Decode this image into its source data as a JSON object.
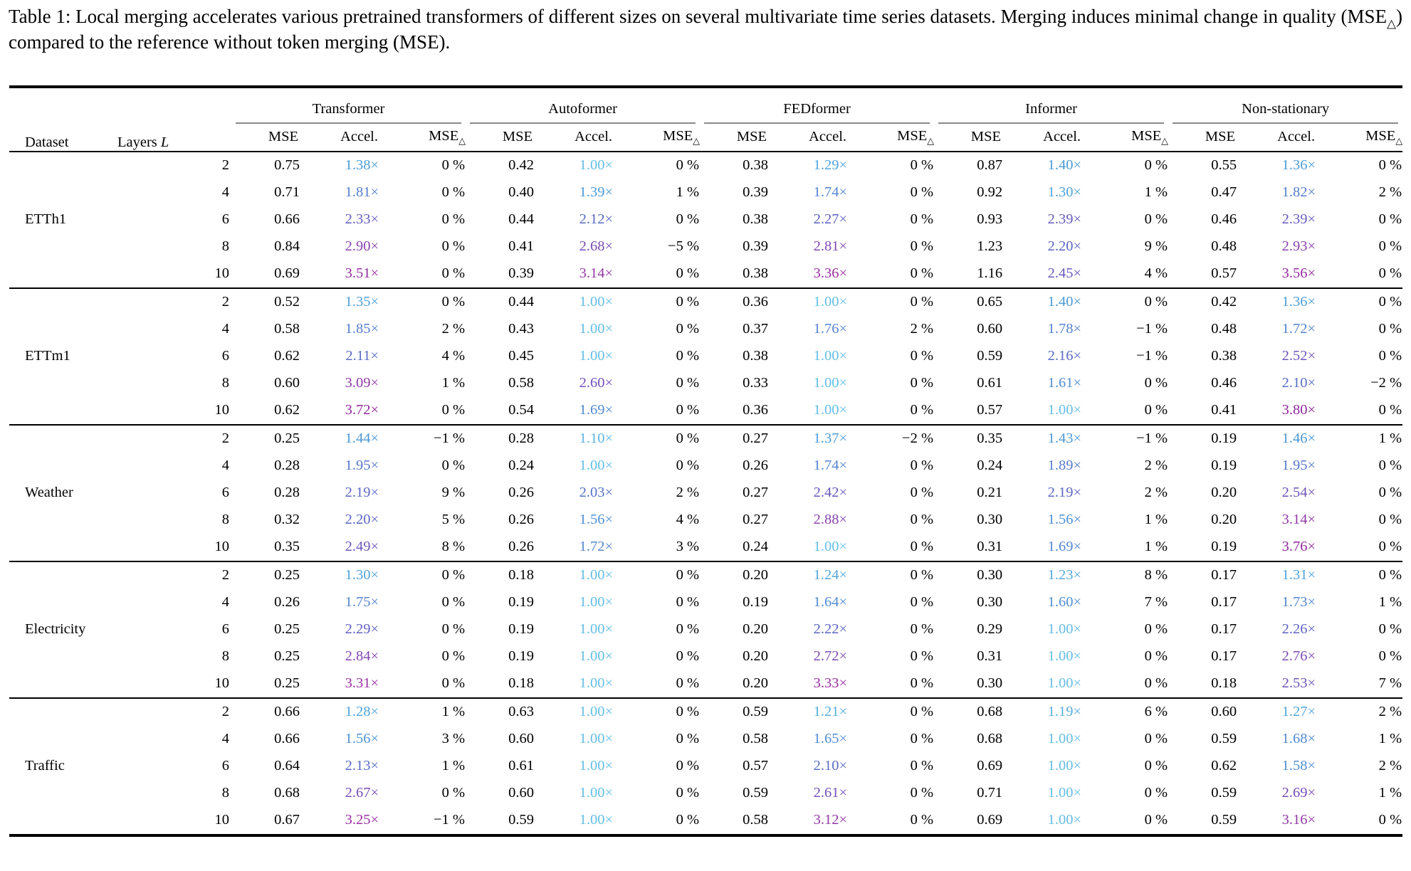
{
  "page": {
    "background": "#ffffff",
    "text_color": "#000000"
  },
  "caption": {
    "part1": "Table 1: Local merging accelerates various pretrained transformers of different sizes on several multivariate time series datasets. Merging induces minimal change in quality (MSE",
    "subscript": "△",
    "part2": ") compared to the reference without token merging (MSE)."
  },
  "table": {
    "corner_headers": {
      "dataset": "Dataset",
      "layers_label": "Layers ",
      "layers_symbol": "L"
    },
    "groups": [
      "Transformer",
      "Autoformer",
      "FEDformer",
      "Informer",
      "Non-stationary"
    ],
    "sub_headers": {
      "mse": "MSE",
      "accel": "Accel.",
      "mse_delta_base": "MSE",
      "mse_delta_sub": "△"
    },
    "units": {
      "accel_suffix": "×",
      "delta_suffix": "%",
      "minus_sign": "−",
      "thin_space": " "
    },
    "accel_color_stops": [
      [
        1.0,
        "#64BEE4"
      ],
      [
        1.4,
        "#4A9BD7"
      ],
      [
        1.8,
        "#5581CC"
      ],
      [
        2.2,
        "#5B66C3"
      ],
      [
        2.6,
        "#7350B8"
      ],
      [
        2.95,
        "#8C42AC"
      ],
      [
        3.3,
        "#9A31A2"
      ],
      [
        3.8,
        "#8F289B"
      ]
    ],
    "blocks": [
      {
        "dataset": "ETTh1",
        "rows": [
          {
            "layers": 2,
            "cells": [
              [
                0.75,
                1.38,
                0
              ],
              [
                0.42,
                1.0,
                0
              ],
              [
                0.38,
                1.29,
                0
              ],
              [
                0.87,
                1.4,
                0
              ],
              [
                0.55,
                1.36,
                0
              ]
            ]
          },
          {
            "layers": 4,
            "cells": [
              [
                0.71,
                1.81,
                0
              ],
              [
                0.4,
                1.39,
                1
              ],
              [
                0.39,
                1.74,
                0
              ],
              [
                0.92,
                1.3,
                1
              ],
              [
                0.47,
                1.82,
                2
              ]
            ]
          },
          {
            "layers": 6,
            "cells": [
              [
                0.66,
                2.33,
                0
              ],
              [
                0.44,
                2.12,
                0
              ],
              [
                0.38,
                2.27,
                0
              ],
              [
                0.93,
                2.39,
                0
              ],
              [
                0.46,
                2.39,
                0
              ]
            ]
          },
          {
            "layers": 8,
            "cells": [
              [
                0.84,
                2.9,
                0
              ],
              [
                0.41,
                2.68,
                -5
              ],
              [
                0.39,
                2.81,
                0
              ],
              [
                1.23,
                2.2,
                9
              ],
              [
                0.48,
                2.93,
                0
              ]
            ]
          },
          {
            "layers": 10,
            "cells": [
              [
                0.69,
                3.51,
                0
              ],
              [
                0.39,
                3.14,
                0
              ],
              [
                0.38,
                3.36,
                0
              ],
              [
                1.16,
                2.45,
                4
              ],
              [
                0.57,
                3.56,
                0
              ]
            ]
          }
        ]
      },
      {
        "dataset": "ETTm1",
        "rows": [
          {
            "layers": 2,
            "cells": [
              [
                0.52,
                1.35,
                0
              ],
              [
                0.44,
                1.0,
                0
              ],
              [
                0.36,
                1.0,
                0
              ],
              [
                0.65,
                1.4,
                0
              ],
              [
                0.42,
                1.36,
                0
              ]
            ]
          },
          {
            "layers": 4,
            "cells": [
              [
                0.58,
                1.85,
                2
              ],
              [
                0.43,
                1.0,
                0
              ],
              [
                0.37,
                1.76,
                2
              ],
              [
                0.6,
                1.78,
                -1
              ],
              [
                0.48,
                1.72,
                0
              ]
            ]
          },
          {
            "layers": 6,
            "cells": [
              [
                0.62,
                2.11,
                4
              ],
              [
                0.45,
                1.0,
                0
              ],
              [
                0.38,
                1.0,
                0
              ],
              [
                0.59,
                2.16,
                -1
              ],
              [
                0.38,
                2.52,
                0
              ]
            ]
          },
          {
            "layers": 8,
            "cells": [
              [
                0.6,
                3.09,
                1
              ],
              [
                0.58,
                2.6,
                0
              ],
              [
                0.33,
                1.0,
                0
              ],
              [
                0.61,
                1.61,
                0
              ],
              [
                0.46,
                2.1,
                -2
              ]
            ]
          },
          {
            "layers": 10,
            "cells": [
              [
                0.62,
                3.72,
                0
              ],
              [
                0.54,
                1.69,
                0
              ],
              [
                0.36,
                1.0,
                0
              ],
              [
                0.57,
                1.0,
                0
              ],
              [
                0.41,
                3.8,
                0
              ]
            ]
          }
        ]
      },
      {
        "dataset": "Weather",
        "rows": [
          {
            "layers": 2,
            "cells": [
              [
                0.25,
                1.44,
                -1
              ],
              [
                0.28,
                1.1,
                0
              ],
              [
                0.27,
                1.37,
                -2
              ],
              [
                0.35,
                1.43,
                -1
              ],
              [
                0.19,
                1.46,
                1
              ]
            ]
          },
          {
            "layers": 4,
            "cells": [
              [
                0.28,
                1.95,
                0
              ],
              [
                0.24,
                1.0,
                0
              ],
              [
                0.26,
                1.74,
                0
              ],
              [
                0.24,
                1.89,
                2
              ],
              [
                0.19,
                1.95,
                0
              ]
            ]
          },
          {
            "layers": 6,
            "cells": [
              [
                0.28,
                2.19,
                9
              ],
              [
                0.26,
                2.03,
                2
              ],
              [
                0.27,
                2.42,
                0
              ],
              [
                0.21,
                2.19,
                2
              ],
              [
                0.2,
                2.54,
                0
              ]
            ]
          },
          {
            "layers": 8,
            "cells": [
              [
                0.32,
                2.2,
                5
              ],
              [
                0.26,
                1.56,
                4
              ],
              [
                0.27,
                2.88,
                0
              ],
              [
                0.3,
                1.56,
                1
              ],
              [
                0.2,
                3.14,
                0
              ]
            ]
          },
          {
            "layers": 10,
            "cells": [
              [
                0.35,
                2.49,
                8
              ],
              [
                0.26,
                1.72,
                3
              ],
              [
                0.24,
                1.0,
                0
              ],
              [
                0.31,
                1.69,
                1
              ],
              [
                0.19,
                3.76,
                0
              ]
            ]
          }
        ]
      },
      {
        "dataset": "Electricity",
        "rows": [
          {
            "layers": 2,
            "cells": [
              [
                0.25,
                1.3,
                0
              ],
              [
                0.18,
                1.0,
                0
              ],
              [
                0.2,
                1.24,
                0
              ],
              [
                0.3,
                1.23,
                8
              ],
              [
                0.17,
                1.31,
                0
              ]
            ]
          },
          {
            "layers": 4,
            "cells": [
              [
                0.26,
                1.75,
                0
              ],
              [
                0.19,
                1.0,
                0
              ],
              [
                0.19,
                1.64,
                0
              ],
              [
                0.3,
                1.6,
                7
              ],
              [
                0.17,
                1.73,
                1
              ]
            ]
          },
          {
            "layers": 6,
            "cells": [
              [
                0.25,
                2.29,
                0
              ],
              [
                0.19,
                1.0,
                0
              ],
              [
                0.2,
                2.22,
                0
              ],
              [
                0.29,
                1.0,
                0
              ],
              [
                0.17,
                2.26,
                0
              ]
            ]
          },
          {
            "layers": 8,
            "cells": [
              [
                0.25,
                2.84,
                0
              ],
              [
                0.19,
                1.0,
                0
              ],
              [
                0.2,
                2.72,
                0
              ],
              [
                0.31,
                1.0,
                0
              ],
              [
                0.17,
                2.76,
                0
              ]
            ]
          },
          {
            "layers": 10,
            "cells": [
              [
                0.25,
                3.31,
                0
              ],
              [
                0.18,
                1.0,
                0
              ],
              [
                0.2,
                3.33,
                0
              ],
              [
                0.3,
                1.0,
                0
              ],
              [
                0.18,
                2.53,
                7
              ]
            ]
          }
        ]
      },
      {
        "dataset": "Traffic",
        "rows": [
          {
            "layers": 2,
            "cells": [
              [
                0.66,
                1.28,
                1
              ],
              [
                0.63,
                1.0,
                0
              ],
              [
                0.59,
                1.21,
                0
              ],
              [
                0.68,
                1.19,
                6
              ],
              [
                0.6,
                1.27,
                2
              ]
            ]
          },
          {
            "layers": 4,
            "cells": [
              [
                0.66,
                1.56,
                3
              ],
              [
                0.6,
                1.0,
                0
              ],
              [
                0.58,
                1.65,
                0
              ],
              [
                0.68,
                1.0,
                0
              ],
              [
                0.59,
                1.68,
                1
              ]
            ]
          },
          {
            "layers": 6,
            "cells": [
              [
                0.64,
                2.13,
                1
              ],
              [
                0.61,
                1.0,
                0
              ],
              [
                0.57,
                2.1,
                0
              ],
              [
                0.69,
                1.0,
                0
              ],
              [
                0.62,
                1.58,
                2
              ]
            ]
          },
          {
            "layers": 8,
            "cells": [
              [
                0.68,
                2.67,
                0
              ],
              [
                0.6,
                1.0,
                0
              ],
              [
                0.59,
                2.61,
                0
              ],
              [
                0.71,
                1.0,
                0
              ],
              [
                0.59,
                2.69,
                1
              ]
            ]
          },
          {
            "layers": 10,
            "cells": [
              [
                0.67,
                3.25,
                -1
              ],
              [
                0.59,
                1.0,
                0
              ],
              [
                0.58,
                3.12,
                0
              ],
              [
                0.69,
                1.0,
                0
              ],
              [
                0.59,
                3.16,
                0
              ]
            ]
          }
        ]
      }
    ]
  }
}
